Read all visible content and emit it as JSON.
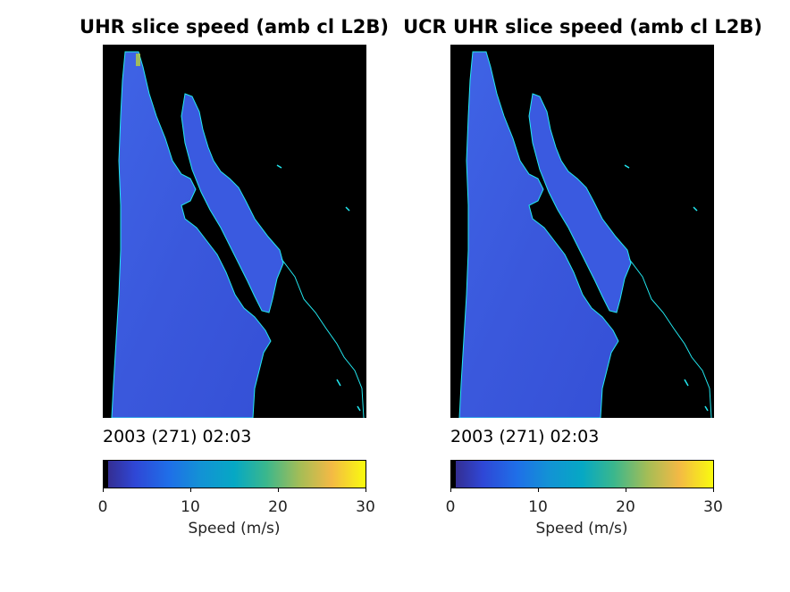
{
  "figure": {
    "panels": [
      {
        "title": "UHR slice speed (amb cl L2B)",
        "timestamp": "2003 (271) 02:03",
        "colorbar": {
          "label": "Speed (m/s)",
          "ticks": [
            "0",
            "10",
            "20",
            "30"
          ]
        }
      },
      {
        "title": "UCR UHR slice speed (amb cl L2B)",
        "timestamp": "2003 (271) 02:03",
        "colorbar": {
          "label": "Speed (m/s)",
          "ticks": [
            "0",
            "10",
            "20",
            "30"
          ]
        }
      }
    ],
    "colors": {
      "ocean": "#3a5ce0",
      "ocean_light": "#4470ea",
      "ocean_dark": "#3145c8",
      "land": "#000000",
      "coastline": "#22e8f0"
    }
  },
  "chart_data": [
    {
      "type": "heatmap",
      "title": "UHR slice speed (amb cl L2B)",
      "subtitle": "2003 (271) 02:03",
      "colorbar_label": "Speed (m/s)",
      "colorbar_range": [
        0,
        30
      ],
      "colorbar_ticks": [
        0,
        10,
        20,
        30
      ],
      "colormap": "parula",
      "typical_ocean_speed": 6
    },
    {
      "type": "heatmap",
      "title": "UCR UHR slice speed (amb cl L2B)",
      "subtitle": "2003 (271) 02:03",
      "colorbar_label": "Speed (m/s)",
      "colorbar_range": [
        0,
        30
      ],
      "colorbar_ticks": [
        0,
        10,
        20,
        30
      ],
      "colormap": "parula",
      "typical_ocean_speed": 6
    }
  ]
}
